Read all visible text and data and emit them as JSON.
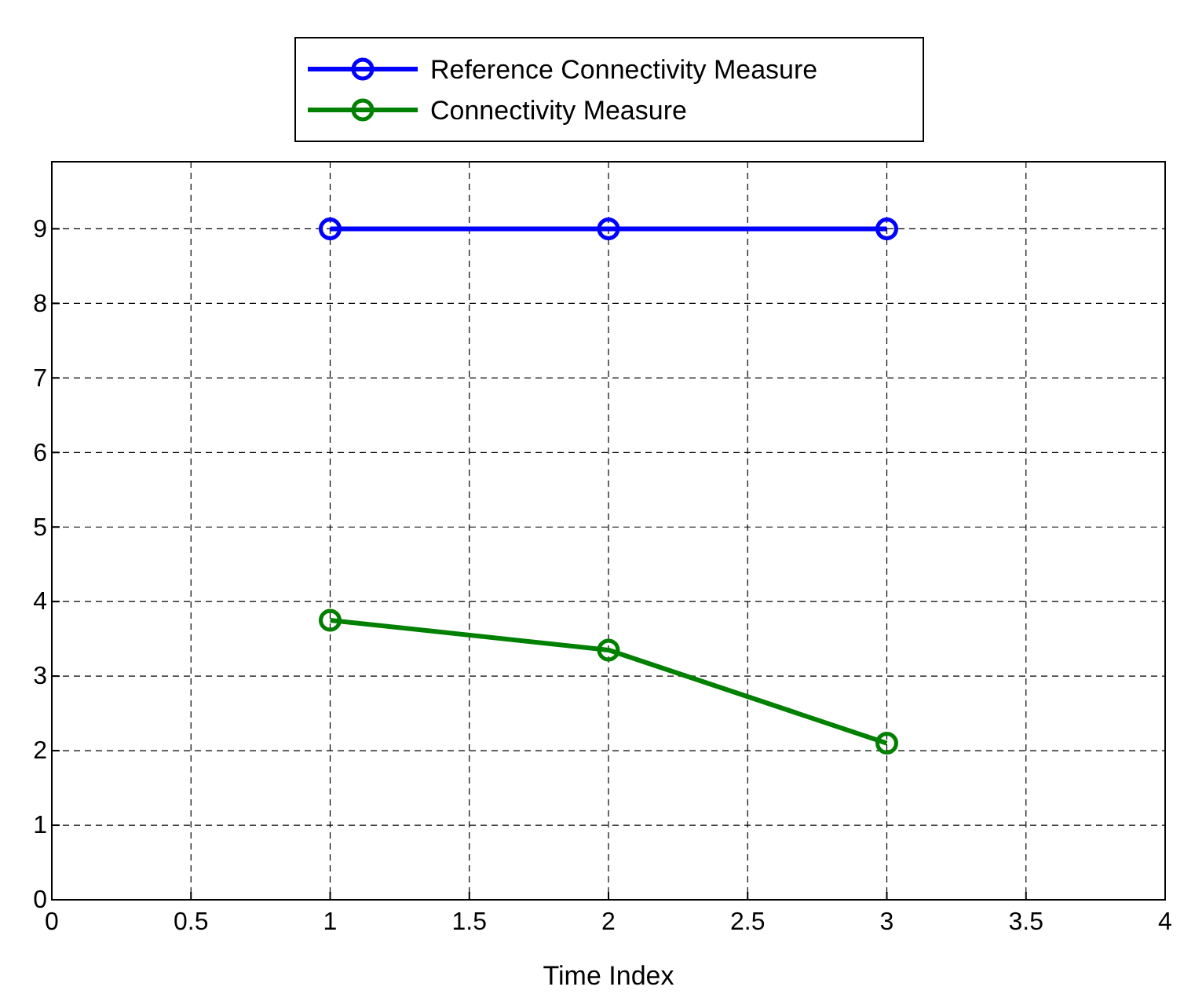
{
  "chart_data": {
    "type": "line",
    "xlabel": "Time Index",
    "x": [
      1,
      2,
      3
    ],
    "series": [
      {
        "name": "Reference Connectivity Measure",
        "color": "#0000ff",
        "values": [
          9,
          9,
          9
        ]
      },
      {
        "name": "Connectivity Measure",
        "color": "#008000",
        "values": [
          3.75,
          3.35,
          2.1
        ]
      }
    ],
    "xlim": [
      0,
      4
    ],
    "xticks": [
      0,
      0.5,
      1,
      1.5,
      2,
      2.5,
      3,
      3.5,
      4
    ],
    "ylim": [
      0,
      9.9
    ],
    "yticks": [
      0,
      1,
      2,
      3,
      4,
      5,
      6,
      7,
      8,
      9
    ],
    "grid": true,
    "legend": "top",
    "marker": "circle",
    "line_style": "solid"
  }
}
